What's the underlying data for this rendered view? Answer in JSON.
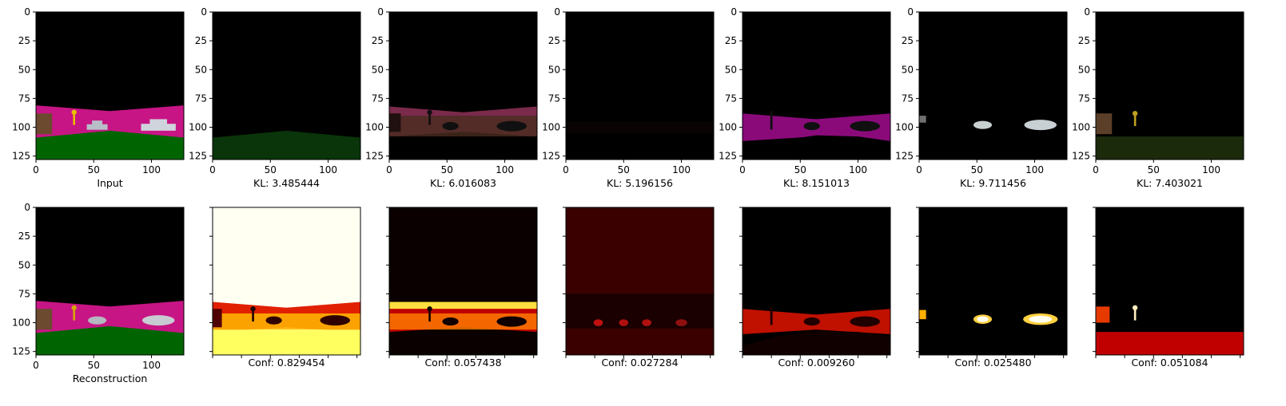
{
  "chart_data": [
    {
      "type": "image",
      "row": 0,
      "col": 0,
      "caption": "Input",
      "scene": "rgb",
      "xticks": [
        0,
        50,
        100
      ],
      "yticks": [
        0,
        25,
        50,
        75,
        100,
        125
      ],
      "xlim": [
        0,
        128
      ],
      "ylim": [
        128,
        0
      ]
    },
    {
      "type": "image",
      "row": 0,
      "col": 1,
      "caption": "KL: 3.485444",
      "scene": "ground-green",
      "xticks": [
        0,
        50,
        100
      ],
      "yticks": [
        0,
        25,
        50,
        75,
        100,
        125
      ],
      "xlim": [
        0,
        128
      ],
      "ylim": [
        128,
        0
      ]
    },
    {
      "type": "image",
      "row": 0,
      "col": 2,
      "caption": "KL: 6.016083",
      "scene": "wall-brown",
      "xticks": [
        0,
        50,
        100
      ],
      "yticks": [
        0,
        25,
        50,
        75,
        100,
        125
      ],
      "xlim": [
        0,
        128
      ],
      "ylim": [
        128,
        0
      ]
    },
    {
      "type": "image",
      "row": 0,
      "col": 3,
      "caption": "KL: 5.196156",
      "scene": "dark",
      "xticks": [
        0,
        50,
        100
      ],
      "yticks": [
        0,
        25,
        50,
        75,
        100,
        125
      ],
      "xlim": [
        0,
        128
      ],
      "ylim": [
        128,
        0
      ]
    },
    {
      "type": "image",
      "row": 0,
      "col": 4,
      "caption": "KL: 8.151013",
      "scene": "wall-magenta",
      "xticks": [
        0,
        50,
        100
      ],
      "yticks": [
        0,
        25,
        50,
        75,
        100,
        125
      ],
      "xlim": [
        0,
        128
      ],
      "ylim": [
        128,
        0
      ]
    },
    {
      "type": "image",
      "row": 0,
      "col": 5,
      "caption": "KL: 9.711456",
      "scene": "cars",
      "xticks": [
        0,
        50,
        100
      ],
      "yticks": [
        0,
        25,
        50,
        75,
        100,
        125
      ],
      "xlim": [
        0,
        128
      ],
      "ylim": [
        128,
        0
      ]
    },
    {
      "type": "image",
      "row": 0,
      "col": 6,
      "caption": "KL: 7.403021",
      "scene": "key-ground",
      "xticks": [
        0,
        50,
        100
      ],
      "yticks": [
        0,
        25,
        50,
        75,
        100,
        125
      ],
      "xlim": [
        0,
        128
      ],
      "ylim": [
        128,
        0
      ]
    },
    {
      "type": "image",
      "row": 1,
      "col": 0,
      "caption": "Reconstruction",
      "scene": "rgb-recon",
      "xticks": [
        0,
        50,
        100
      ],
      "yticks": [
        0,
        25,
        50,
        75,
        100,
        125
      ],
      "xlim": [
        0,
        128
      ],
      "ylim": [
        128,
        0
      ]
    },
    {
      "type": "heatmap",
      "row": 1,
      "col": 1,
      "caption": "Conf: 0.829454",
      "colormap": "hot",
      "scene": "conf-bright"
    },
    {
      "type": "heatmap",
      "row": 1,
      "col": 2,
      "caption": "Conf: 0.057438",
      "colormap": "hot",
      "scene": "conf-wall"
    },
    {
      "type": "heatmap",
      "row": 1,
      "col": 3,
      "caption": "Conf: 0.027284",
      "colormap": "hot",
      "scene": "conf-dark"
    },
    {
      "type": "heatmap",
      "row": 1,
      "col": 4,
      "caption": "Conf: 0.009260",
      "colormap": "hot",
      "scene": "conf-magenta"
    },
    {
      "type": "heatmap",
      "row": 1,
      "col": 5,
      "caption": "Conf: 0.025480",
      "colormap": "hot",
      "scene": "conf-cars"
    },
    {
      "type": "heatmap",
      "row": 1,
      "col": 6,
      "caption": "Conf: 0.051084",
      "colormap": "hot",
      "scene": "conf-key"
    }
  ]
}
